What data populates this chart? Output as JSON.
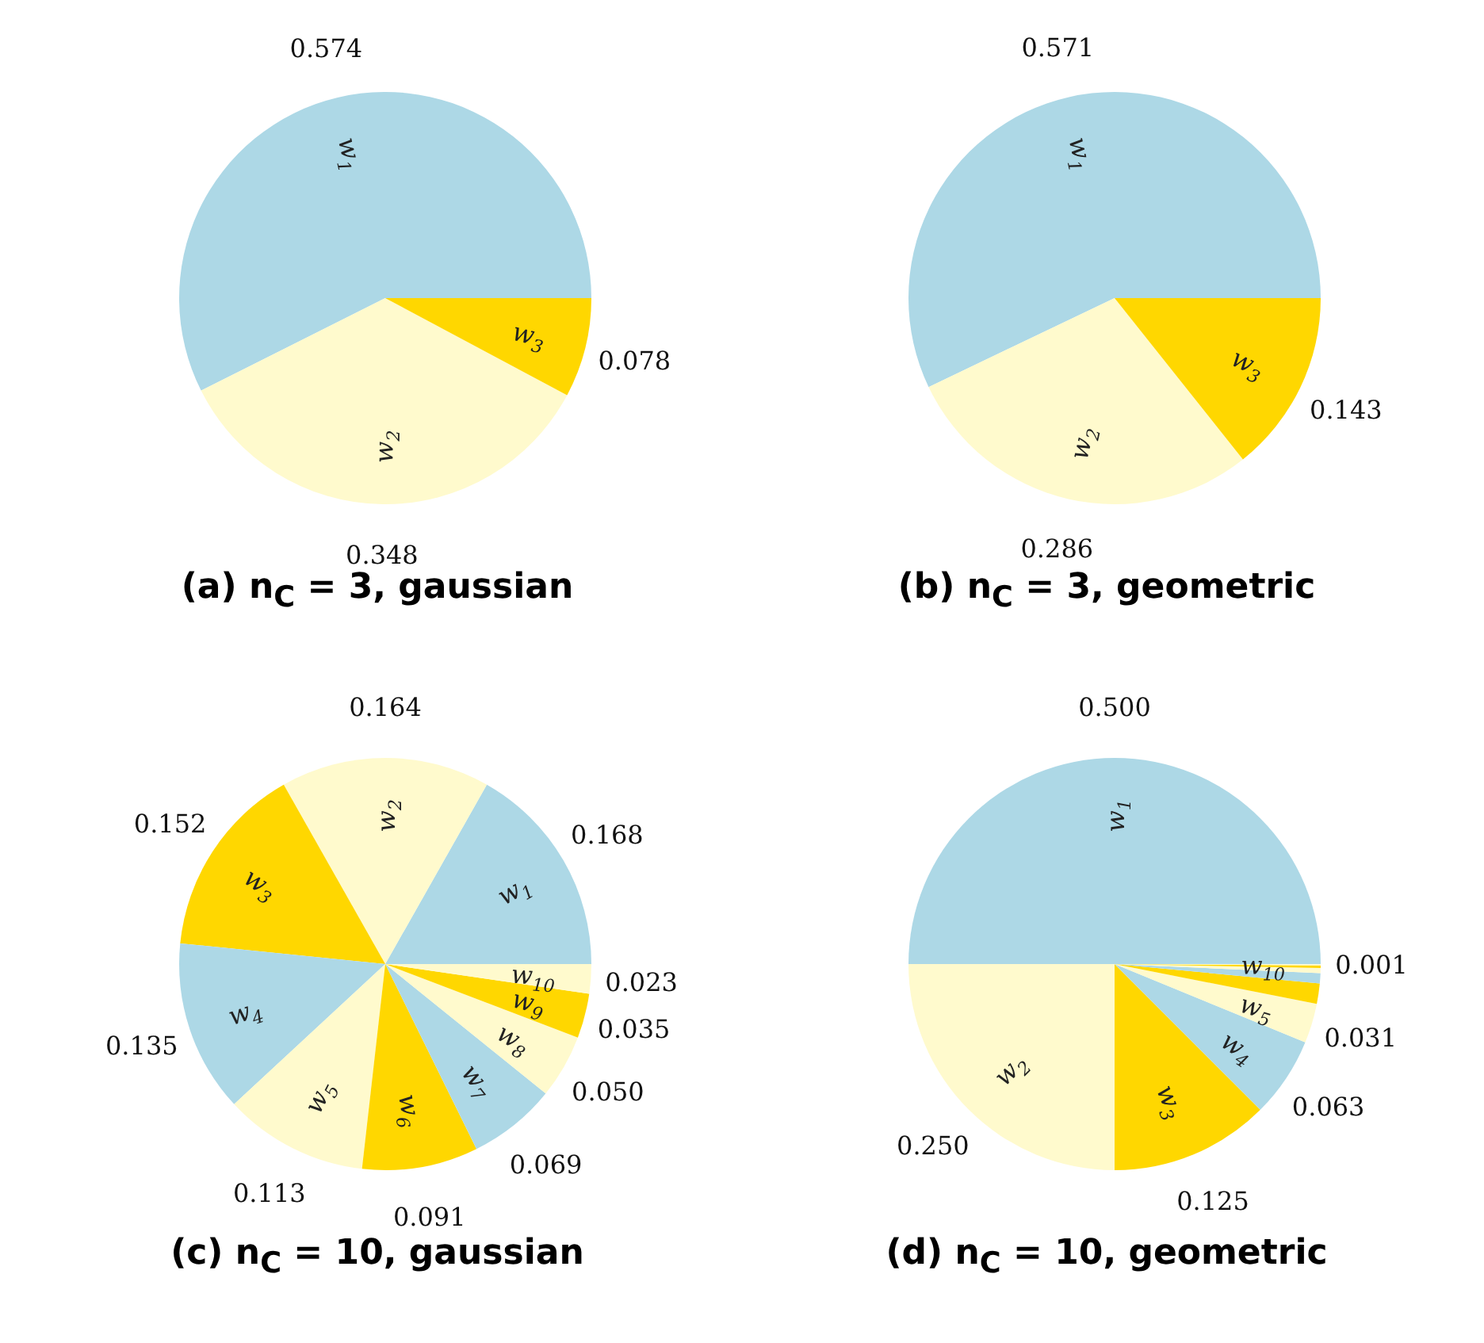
{
  "chart_data": [
    {
      "type": "pie",
      "title": "(a) n$_{C}$ = 3, gaussian",
      "categories": [
        "w$_{1}$",
        "w$_{2}$",
        "w$_{3}$"
      ],
      "values": [
        0.574,
        0.348,
        0.078
      ],
      "colors": [
        "#add8e6",
        "#fffacd",
        "#ffd700"
      ],
      "value_labels": [
        "0.574",
        "0.348",
        "0.078"
      ]
    },
    {
      "type": "pie",
      "title": "(b) n$_{C}$ = 3, geometric",
      "categories": [
        "w$_{1}$",
        "w$_{2}$",
        "w$_{3}$"
      ],
      "values": [
        0.571,
        0.286,
        0.143
      ],
      "colors": [
        "#add8e6",
        "#fffacd",
        "#ffd700"
      ],
      "value_labels": [
        "0.571",
        "0.286",
        "0.143"
      ]
    },
    {
      "type": "pie",
      "title": "(c) n$_{C}$ = 10, gaussian",
      "categories": [
        "w$_{1}$",
        "w$_{2}$",
        "w$_{3}$",
        "w$_{4}$",
        "w$_{5}$",
        "w$_{6}$",
        "w$_{7}$",
        "w$_{8}$",
        "w$_{9}$",
        "w$_{10}$"
      ],
      "values": [
        0.168,
        0.164,
        0.152,
        0.135,
        0.113,
        0.091,
        0.069,
        0.05,
        0.035,
        0.023
      ],
      "colors": [
        "#add8e6",
        "#fffacd",
        "#ffd700",
        "#add8e6",
        "#fffacd",
        "#ffd700",
        "#add8e6",
        "#fffacd",
        "#ffd700",
        "#fffacd"
      ],
      "value_labels": [
        "0.168",
        "0.164",
        "0.152",
        "0.135",
        "0.113",
        "0.091",
        "0.069",
        "0.050",
        "0.035",
        "0.023"
      ]
    },
    {
      "type": "pie",
      "title": "(d) n$_{C}$ = 10, geometric",
      "categories": [
        "w$_{1}$",
        "w$_{2}$",
        "w$_{3}$",
        "w$_{4}$",
        "w$_{5}$",
        null,
        null,
        null,
        null,
        "w$_{10}$"
      ],
      "values": [
        0.5,
        0.25,
        0.125,
        0.063,
        0.031,
        0.016,
        0.008,
        0.004,
        0.002,
        0.001
      ],
      "colors": [
        "#add8e6",
        "#fffacd",
        "#ffd700",
        "#add8e6",
        "#fffacd",
        "#ffd700",
        "#add8e6",
        "#fffacd",
        "#ffd700",
        "#fffacd"
      ],
      "value_labels": [
        "0.500",
        "0.250",
        "0.125",
        "0.063",
        "0.031",
        null,
        null,
        null,
        null,
        "0.001"
      ]
    }
  ]
}
